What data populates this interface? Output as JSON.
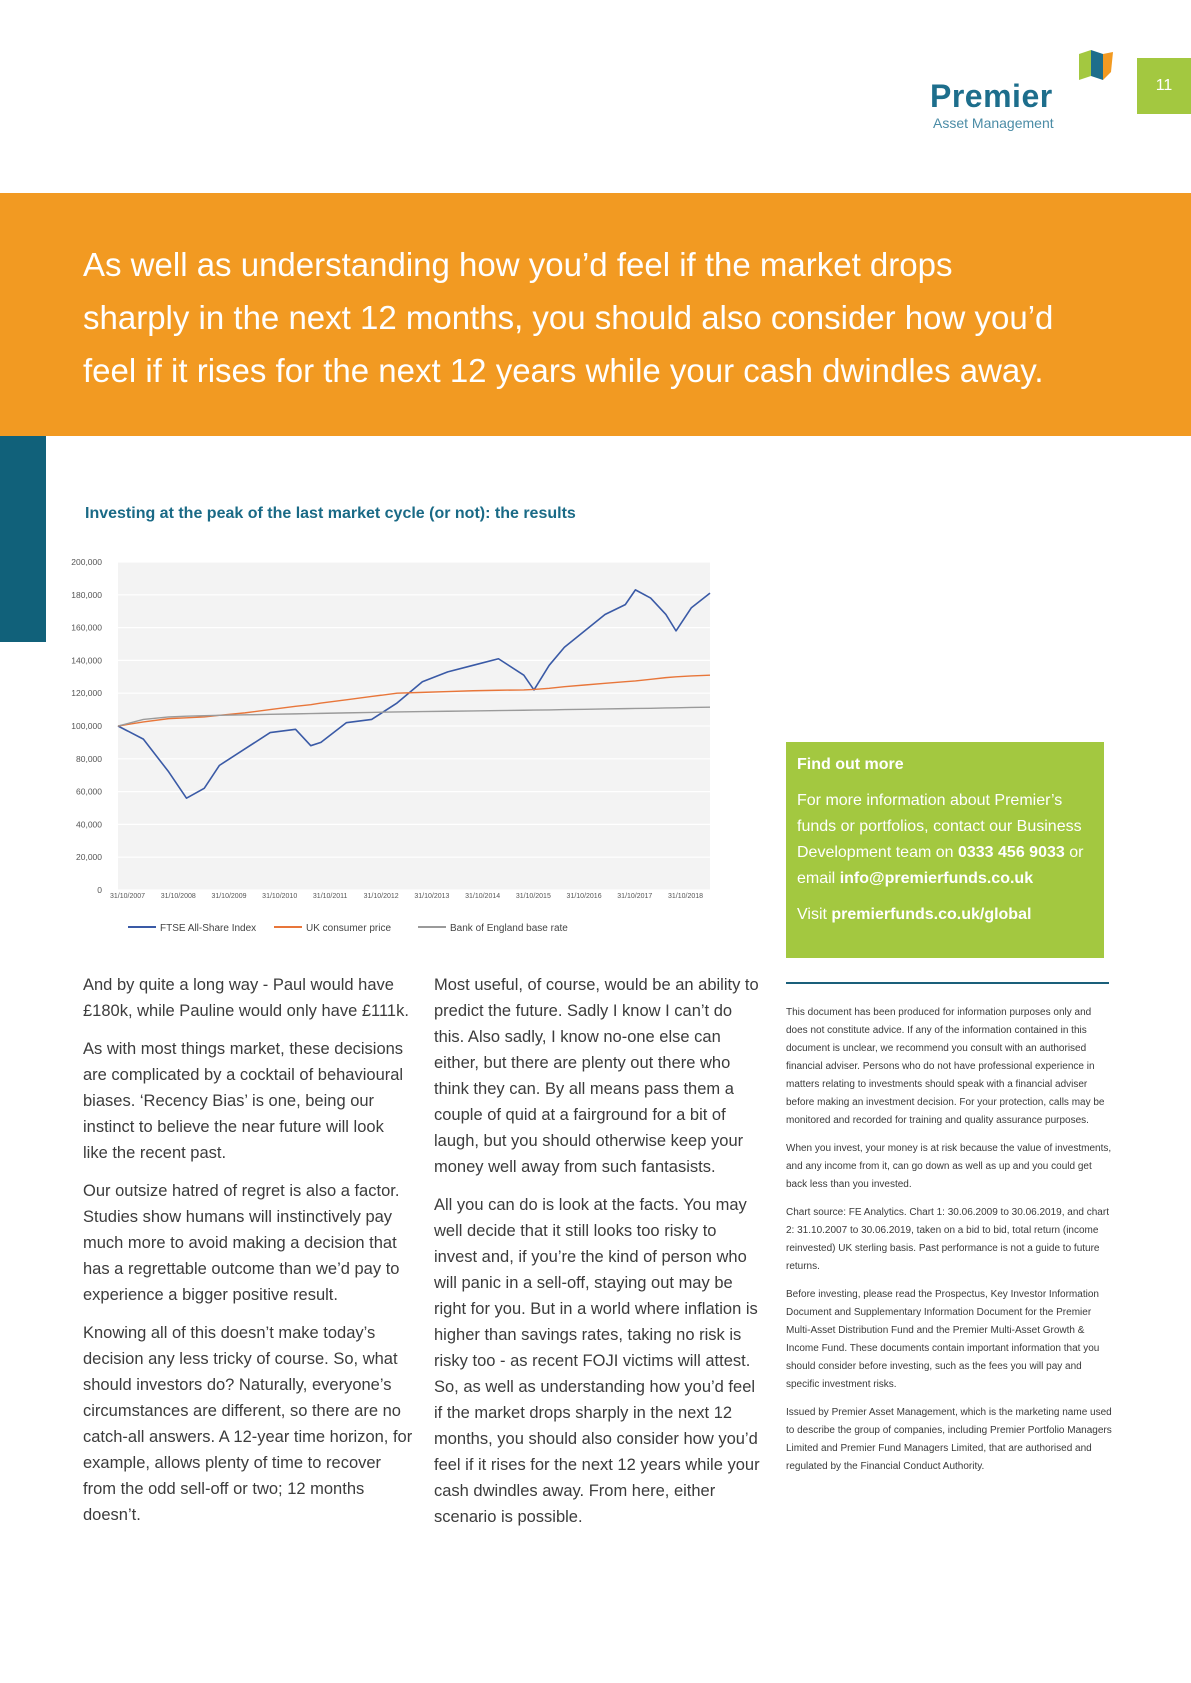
{
  "page_number": "11",
  "logo": {
    "name": "Premier",
    "tagline": "Asset Management",
    "colors": {
      "blue": "#1d6e8c",
      "orange": "#f29a22",
      "green": "#a3c840"
    }
  },
  "banner": {
    "line1": "As well as understanding how you’d feel if the market drops",
    "line2": "sharply in the next 12 months, you should also consider how you’d",
    "line3": "feel if it rises for the next 12 years while your cash dwindles away."
  },
  "chart_title": "Investing at the peak of the last market cycle (or not): the results",
  "chart_data": {
    "type": "line",
    "title": "Investing at the peak of the last market cycle (or not): the results",
    "ylim": [
      0,
      200000
    ],
    "grid": true,
    "legend_placement": "bottom",
    "x_tick_labels": [
      "31/10/2007",
      "31/10/2008",
      "31/10/2009",
      "31/10/2010",
      "31/10/2011",
      "31/10/2012",
      "31/10/2013",
      "31/10/2014",
      "31/10/2015",
      "31/10/2016",
      "31/10/2017",
      "31/10/2018"
    ],
    "y_tick_labels": [
      "0",
      "20,000",
      "40,000",
      "60,000",
      "80,000",
      "100,000",
      "120,000",
      "140,000",
      "160,000",
      "180,000",
      "200,000"
    ],
    "x_years": [
      0,
      0.5,
      1.0,
      1.35,
      1.7,
      2.0,
      2.5,
      3.0,
      3.5,
      3.8,
      4.0,
      4.5,
      5.0,
      5.5,
      6.0,
      6.5,
      7.0,
      7.5,
      8.0,
      8.2,
      8.5,
      8.8,
      9.2,
      9.6,
      10.0,
      10.2,
      10.5,
      10.8,
      11.0,
      11.3,
      11.67
    ],
    "series": [
      {
        "name": "FTSE All-Share Index",
        "color": "#3a5aa6",
        "values": [
          100000,
          92000,
          72000,
          56000,
          62000,
          76000,
          86000,
          96000,
          98000,
          88000,
          90000,
          102000,
          104000,
          114000,
          127000,
          133000,
          137000,
          141000,
          131000,
          122000,
          137000,
          148000,
          158000,
          168000,
          174000,
          183000,
          178000,
          168000,
          158000,
          172000,
          181000
        ]
      },
      {
        "name": "UK consumer price",
        "color": "#e8763a",
        "values": [
          100000,
          102500,
          104500,
          105000,
          105500,
          106500,
          108000,
          110000,
          112000,
          113000,
          114000,
          116000,
          118000,
          120000,
          120500,
          121000,
          121500,
          121800,
          122000,
          122300,
          123000,
          124000,
          125000,
          126000,
          127000,
          127500,
          128500,
          129500,
          130000,
          130500,
          131000
        ]
      },
      {
        "name": "Bank of England base rate",
        "color": "#9a9a9a",
        "values": [
          100000,
          104000,
          105500,
          106000,
          106300,
          106500,
          106800,
          107100,
          107400,
          107600,
          107700,
          108000,
          108300,
          108600,
          108800,
          109000,
          109200,
          109400,
          109600,
          109700,
          109800,
          110000,
          110200,
          110400,
          110600,
          110700,
          110800,
          111000,
          111100,
          111300,
          111500
        ]
      }
    ]
  },
  "col1": {
    "p1": "And by quite a long way - Paul would have £180k, while Pauline would only have £111k.",
    "p2": "As with most things market, these decisions are complicated by a cocktail of behavioural biases. ‘Recency Bias’ is one, being our instinct to believe the near future will look like the recent past.",
    "p3": "Our outsize hatred of regret is also a factor. Studies show humans will instinctively pay much more to avoid making a decision that has a regrettable outcome than we’d pay to experience a bigger positive result.",
    "p4": "Knowing all of this doesn’t make today’s decision any less tricky of course. So, what should investors do? Naturally, everyone’s circumstances are different, so there are no catch-all answers. A 12-year time horizon, for example, allows plenty of time to recover from the odd sell-off or two; 12 months doesn’t."
  },
  "col2": {
    "p1": "Most useful, of course, would be an ability to predict the future. Sadly I know I can’t do this. Also sadly, I know no-one else can either, but there are plenty out there who think they can. By all means pass them a couple of quid at a fairground for a bit of laugh, but you should otherwise keep your money well away from such fantasists.",
    "p2": "All you can do is look at the facts. You may well decide that it still looks too risky to invest and, if you’re the kind of person who will panic in a sell-off, staying out may be right for you. But in a world where inflation is higher than savings rates, taking no risk is risky too - as recent FOJI victims will attest. So, as well as understanding how you’d feel if the market drops sharply in the next 12 months, you should also consider how you’d feel if it rises for the next 12 years while your cash dwindles away. From here, either scenario is possible."
  },
  "find_out": {
    "heading": "Find out more",
    "text_a": "For more information about Premier’s funds or portfolios, contact our Business Development team on ",
    "phone": "0333 456 9033",
    "text_b": " or email ",
    "email": "info@premierfunds.co.uk",
    "visit_label": "Visit ",
    "website": "premierfunds.co.uk/global"
  },
  "disclaimer": {
    "p1": "This document has been produced for information purposes only and does not constitute advice. If any of the information contained in this document is unclear, we recommend you consult with an authorised financial adviser. Persons who do not have professional experience in matters relating to investments should speak with a financial adviser before making an investment decision. For your protection, calls may be monitored and recorded for training and quality assurance purposes.",
    "p2": "When you invest, your money is at risk because the value of investments, and any income from it, can go down as well as up and you could get back less than you invested.",
    "p3": "Chart source: FE Analytics. Chart 1: 30.06.2009 to 30.06.2019, and chart 2: 31.10.2007 to 30.06.2019, taken on a bid to bid, total return (income reinvested) UK sterling basis. Past performance is not a guide to future returns.",
    "p4": "Before investing, please read the Prospectus, Key Investor Information Document and Supplementary Information Document for the Premier Multi-Asset Distribution Fund and the Premier Multi-Asset Growth & Income Fund. These documents contain important information that you should consider before investing, such as the fees you will pay and specific investment risks.",
    "p5": "Issued by Premier Asset Management, which is the marketing name used to describe the group of companies, including Premier Portfolio Managers Limited and Premier Fund Managers Limited, that are authorised and regulated by the Financial Conduct Authority."
  }
}
